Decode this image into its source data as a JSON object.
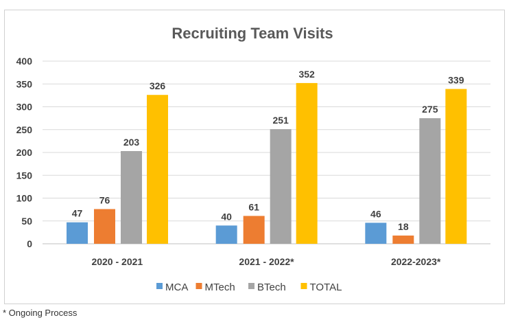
{
  "chart_data": {
    "type": "bar",
    "title": "Recruiting Team Visits",
    "categories": [
      "2020 - 2021",
      "2021 - 2022*",
      "2022-2023*"
    ],
    "series": [
      {
        "name": "MCA",
        "color": "#5b9bd5",
        "values": [
          47,
          40,
          46
        ]
      },
      {
        "name": "MTech",
        "color": "#ed7d31",
        "values": [
          76,
          61,
          18
        ]
      },
      {
        "name": "BTech",
        "color": "#a5a5a5",
        "values": [
          203,
          251,
          275
        ]
      },
      {
        "name": "TOTAL",
        "color": "#ffc000",
        "values": [
          326,
          352,
          339
        ]
      }
    ],
    "ylim": [
      0,
      400
    ],
    "yticks": [
      0,
      50,
      100,
      150,
      200,
      250,
      300,
      350,
      400
    ],
    "grid": true,
    "legend": "bottom",
    "xlabel": "",
    "ylabel": ""
  },
  "footnote": "* Ongoing Process"
}
